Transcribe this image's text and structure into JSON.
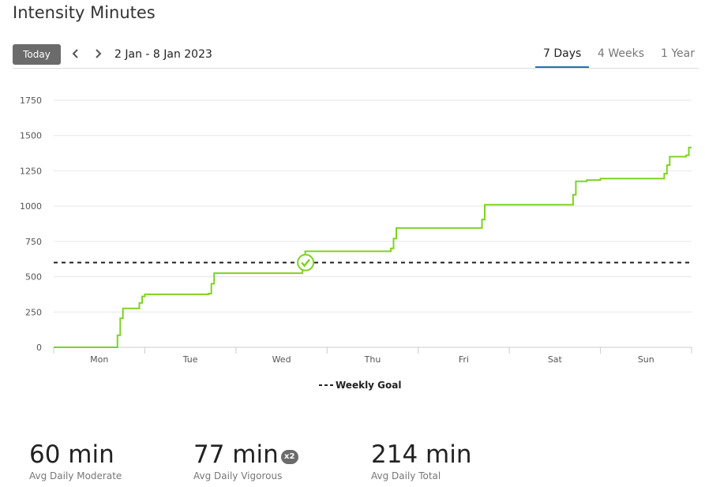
{
  "page": {
    "title": "Intensity Minutes"
  },
  "toolbar": {
    "today_label": "Today",
    "prev_icon": "chevron-left-icon",
    "next_icon": "chevron-right-icon",
    "date_range": "2 Jan - 8 Jan 2023",
    "tabs": [
      {
        "label": "7 Days",
        "active": true
      },
      {
        "label": "4 Weeks",
        "active": false
      },
      {
        "label": "1 Year",
        "active": false
      }
    ],
    "accent_color": "#2b6fb3"
  },
  "chart_data": {
    "type": "line",
    "step": true,
    "categories": [
      "Mon",
      "Tue",
      "Wed",
      "Thu",
      "Fri",
      "Sat",
      "Sun"
    ],
    "ylim": [
      0,
      1750
    ],
    "yticks": [
      0,
      250,
      500,
      750,
      1000,
      1250,
      1500,
      1750
    ],
    "grid": true,
    "series": [
      {
        "color": "#7ed321",
        "points": [
          [
            0.0,
            0
          ],
          [
            0.7,
            0
          ],
          [
            0.7,
            85
          ],
          [
            0.73,
            85
          ],
          [
            0.73,
            205
          ],
          [
            0.76,
            205
          ],
          [
            0.76,
            275
          ],
          [
            0.94,
            275
          ],
          [
            0.94,
            315
          ],
          [
            0.97,
            315
          ],
          [
            0.97,
            360
          ],
          [
            1.0,
            360
          ],
          [
            1.0,
            375
          ],
          [
            1.7,
            375
          ],
          [
            1.7,
            380
          ],
          [
            1.73,
            380
          ],
          [
            1.73,
            450
          ],
          [
            1.76,
            450
          ],
          [
            1.76,
            525
          ],
          [
            2.73,
            525
          ],
          [
            2.73,
            610
          ],
          [
            2.76,
            610
          ],
          [
            2.76,
            680
          ],
          [
            3.7,
            680
          ],
          [
            3.7,
            700
          ],
          [
            3.73,
            700
          ],
          [
            3.73,
            770
          ],
          [
            3.76,
            770
          ],
          [
            3.76,
            845
          ],
          [
            4.7,
            845
          ],
          [
            4.7,
            905
          ],
          [
            4.73,
            905
          ],
          [
            4.73,
            1010
          ],
          [
            5.7,
            1010
          ],
          [
            5.7,
            1080
          ],
          [
            5.73,
            1080
          ],
          [
            5.73,
            1175
          ],
          [
            5.85,
            1175
          ],
          [
            5.85,
            1185
          ],
          [
            6.0,
            1185
          ],
          [
            6.0,
            1195
          ],
          [
            6.7,
            1195
          ],
          [
            6.7,
            1230
          ],
          [
            6.73,
            1230
          ],
          [
            6.73,
            1290
          ],
          [
            6.76,
            1290
          ],
          [
            6.76,
            1350
          ],
          [
            6.94,
            1350
          ],
          [
            6.94,
            1360
          ],
          [
            6.97,
            1360
          ],
          [
            6.97,
            1415
          ],
          [
            7.0,
            1415
          ]
        ]
      }
    ],
    "goal": {
      "value": 600,
      "label": "Weekly Goal",
      "reached_at": 2.73
    }
  },
  "stats": [
    {
      "value": "60 min",
      "label": "Avg Daily Moderate",
      "badge": ""
    },
    {
      "value": "77 min",
      "label": "Avg Daily Vigorous",
      "badge": "x2"
    },
    {
      "value": "214 min",
      "label": "Avg Daily Total",
      "badge": ""
    }
  ]
}
